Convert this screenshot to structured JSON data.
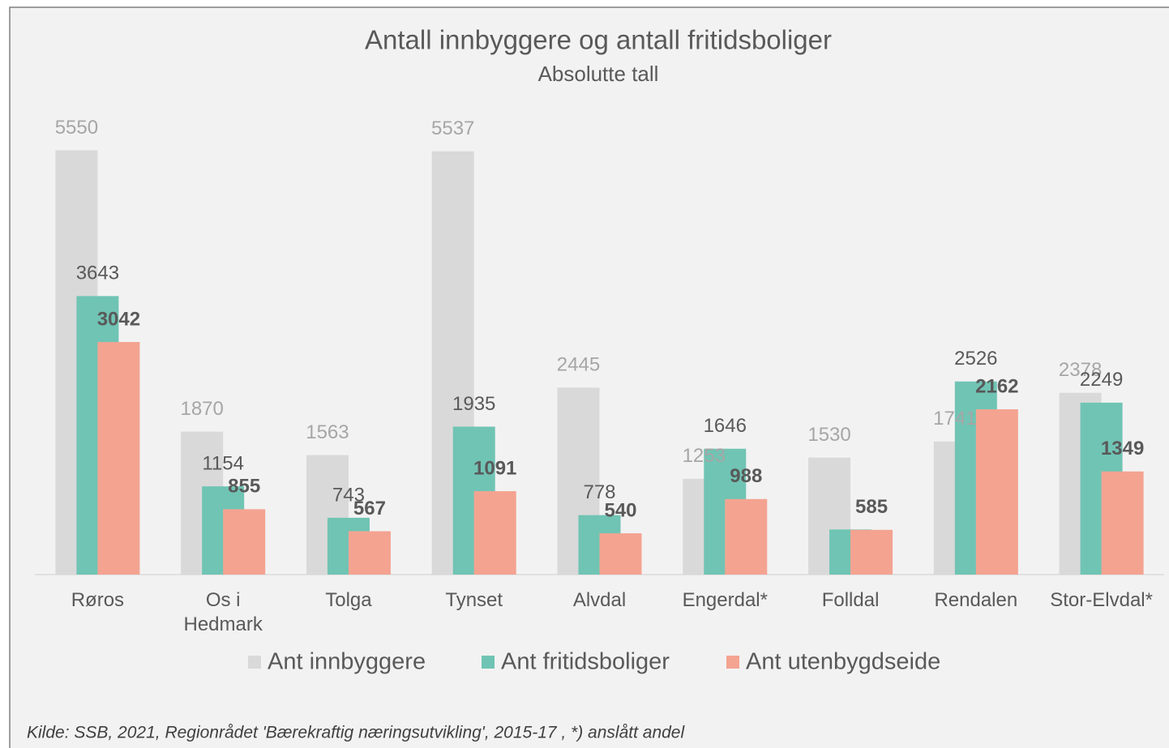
{
  "chart_data": {
    "type": "bar",
    "title": "Antall innbyggere og antall fritidsboliger",
    "subtitle": "Absolutte tall",
    "categories": [
      "Røros",
      "Os i\nHedmark",
      "Tolga",
      "Tynset",
      "Alvdal",
      "Engerdal*",
      "Folldal",
      "Rendalen",
      "Stor-Elvdal*"
    ],
    "series": [
      {
        "name": "Ant innbyggere",
        "color": "#d9d9d9",
        "values": [
          5550,
          1870,
          1563,
          5537,
          2445,
          1253,
          1530,
          1741,
          2378
        ]
      },
      {
        "name": "Ant fritidsboliger",
        "color": "#70c4b4",
        "values": [
          3643,
          1154,
          743,
          1935,
          778,
          1646,
          590,
          2526,
          2249
        ],
        "value_labels": [
          "3643",
          "1154",
          "743",
          "1935",
          "778",
          "1646",
          null,
          "2526",
          "2249"
        ]
      },
      {
        "name": "Ant utenbygdseide",
        "color": "#f4a391",
        "values": [
          3042,
          855,
          567,
          1091,
          540,
          988,
          585,
          2162,
          1349
        ]
      }
    ],
    "ylim": [
      0,
      6000
    ],
    "grid": false,
    "source": "Kilde: SSB, 2021, Regionrådet 'Bærekraftig næringsutvikling', 2015-17 , *) anslått andel"
  }
}
